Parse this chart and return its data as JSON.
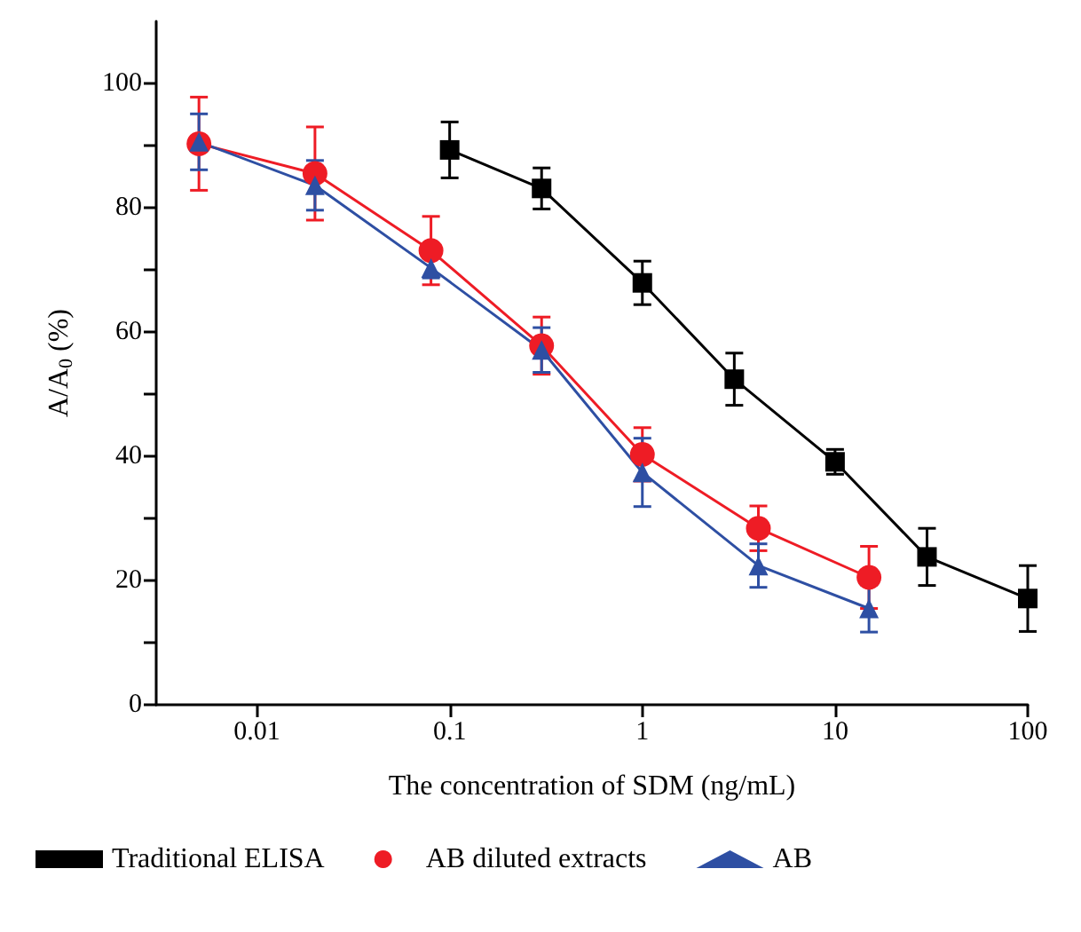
{
  "chart_data": {
    "type": "line",
    "xlabel": "The concentration of SDM (ng/mL)",
    "ylabel": "A/A$_{0}$ (%)",
    "log": "x",
    "xlim": [
      0.003,
      100
    ],
    "xticks": [
      0.01,
      0.1,
      1,
      10,
      100
    ],
    "ylim": [
      0,
      110
    ],
    "yticks": [
      0,
      {
        "value": 10,
        "label": null
      },
      20,
      {
        "value": 30,
        "label": null
      },
      40,
      {
        "value": 50,
        "label": null
      },
      60,
      {
        "value": 70,
        "label": null
      },
      80,
      {
        "value": 90,
        "label": null
      },
      100
    ],
    "grid": false,
    "legend": "bottom",
    "line_style": "solid",
    "series": [
      {
        "name": "Traditional ELISA",
        "color": "#000000",
        "marker": "square",
        "x": [
          0.1,
          0.3,
          1,
          3,
          10,
          30,
          100
        ],
        "values": [
          89.3,
          83.1,
          67.9,
          52.4,
          39.1,
          23.8,
          17.1
        ],
        "errors": [
          4.5,
          3.3,
          3.5,
          4.2,
          2,
          4.6,
          5.3
        ]
      },
      {
        "name": "AB diluted extracts",
        "color": "#ee1c25",
        "marker": "circle",
        "x": [
          0.005,
          0.02,
          0.08,
          0.3,
          1,
          4,
          15
        ],
        "values": [
          90.3,
          85.5,
          73.1,
          57.8,
          40.3,
          28.4,
          20.5
        ],
        "errors": [
          7.5,
          7.5,
          5.5,
          4.6,
          4.3,
          3.6,
          5
        ]
      },
      {
        "name": "AB",
        "color": "#2e4fa3",
        "marker": "triangle",
        "x": [
          0.005,
          0.02,
          0.08,
          0.3,
          1,
          4,
          15
        ],
        "values": [
          90.6,
          83.6,
          70.3,
          57.1,
          37.4,
          22.4,
          15.5
        ],
        "errors": [
          4.5,
          4,
          1.6,
          3.6,
          5.5,
          3.5,
          3.8
        ]
      }
    ]
  }
}
